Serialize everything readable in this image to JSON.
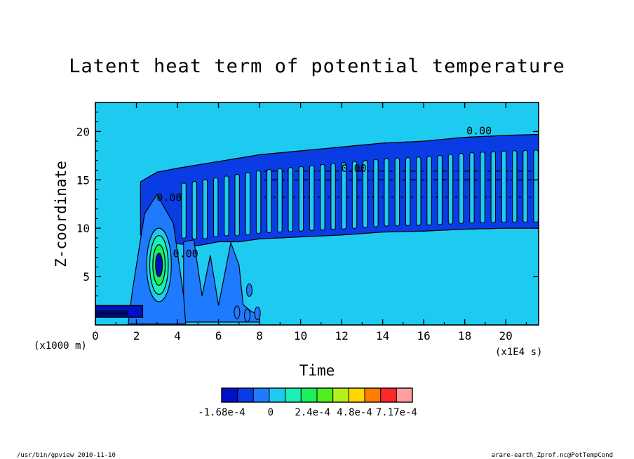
{
  "chart_data": {
    "type": "heatmap",
    "title": "Latent heat term of potential temperature",
    "xlabel": "Time",
    "ylabel": "Z-coordinate",
    "x_unit_label": "(x1E4 s)",
    "y_unit_label": "(x1000 m)",
    "xlim": [
      0,
      21.6
    ],
    "ylim": [
      0,
      23
    ],
    "x_ticks": [
      0,
      2,
      4,
      6,
      8,
      10,
      12,
      14,
      16,
      18,
      20
    ],
    "y_ticks": [
      5,
      10,
      15,
      20
    ],
    "x_tick_labels": [
      "0",
      "2",
      "4",
      "6",
      "8",
      "10",
      "12",
      "14",
      "16",
      "18",
      "20"
    ],
    "y_tick_labels": [
      "5",
      "10",
      "15",
      "20"
    ],
    "background_level_color": "#1ecbf0",
    "colorbar": {
      "colors": [
        "#0010c8",
        "#0a3ce6",
        "#1e7bff",
        "#1ecbf0",
        "#19f0b4",
        "#19f05a",
        "#50f01e",
        "#b4f01e",
        "#ffd700",
        "#ff7c00",
        "#ff2828",
        "#ff9ea0"
      ],
      "labels": [
        "-1.68e-4",
        "0",
        "2.4e-4",
        "4.8e-4",
        "7.17e-4"
      ],
      "label_positions_level": [
        0,
        2,
        4,
        6,
        8
      ]
    },
    "contour_labels": [
      {
        "text": "0.00",
        "x": 18.7,
        "y": 19.7
      },
      {
        "text": "0.00",
        "x": 12.6,
        "y": 15.8
      },
      {
        "text": "0.00",
        "x": 3.6,
        "y": 12.8
      },
      {
        "text": "0.00",
        "x": 4.4,
        "y": 7.0
      }
    ],
    "regions": {
      "upper_band_top": [
        [
          2.2,
          14.8
        ],
        [
          3.0,
          15.8
        ],
        [
          4.0,
          16.2
        ],
        [
          6.0,
          16.9
        ],
        [
          8.0,
          17.6
        ],
        [
          10.0,
          18.0
        ],
        [
          12.0,
          18.4
        ],
        [
          14.0,
          18.8
        ],
        [
          16.0,
          19.0
        ],
        [
          18.0,
          19.4
        ],
        [
          20.0,
          19.6
        ],
        [
          21.6,
          19.7
        ]
      ],
      "upper_band_bottom": [
        [
          2.6,
          9.3
        ],
        [
          3.4,
          8.8
        ],
        [
          4.0,
          8.4
        ],
        [
          5.0,
          8.2
        ],
        [
          6.0,
          8.6
        ],
        [
          7.0,
          8.6
        ],
        [
          8.0,
          8.9
        ],
        [
          10.0,
          9.1
        ],
        [
          12.0,
          9.3
        ],
        [
          14.0,
          9.6
        ],
        [
          16.0,
          9.7
        ],
        [
          18.0,
          9.9
        ],
        [
          20.0,
          10.0
        ],
        [
          21.6,
          10.0
        ]
      ],
      "convective_core": {
        "x_center": 3.1,
        "z_center": 6.2,
        "x_halfwidth": 0.6,
        "z_halfheight": 3.8
      },
      "low_layer": {
        "x_end": 2.3,
        "z_bottom": 0.8,
        "z_top": 2.0
      },
      "stripe_spacing": 0.52
    }
  },
  "footer": {
    "left": "/usr/bin/gpview   2010-11-10",
    "right": "arare-earth_Zprof.nc@PotTempCond"
  }
}
